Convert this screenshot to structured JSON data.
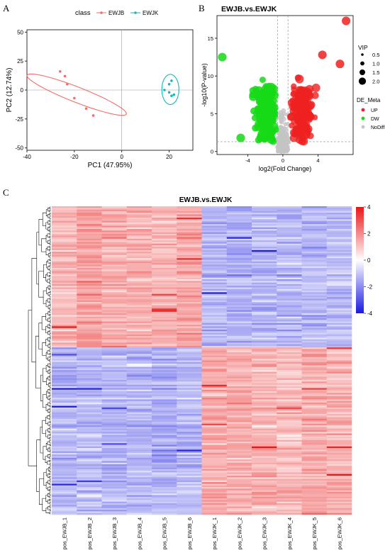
{
  "panels": {
    "a": "A",
    "b": "B",
    "c": "C"
  },
  "colors": {
    "ewjb": "#f26d6b",
    "ewjk": "#14b8b8",
    "up": "#ee2020",
    "dw": "#16d916",
    "nodiff": "#c4c4c4",
    "heat_high": "#e81717",
    "heat_mid": "#ffffff",
    "heat_low": "#1919e0"
  },
  "chart_data": [
    {
      "type": "scatter",
      "xlabel": "PC1 (47.95%)",
      "ylabel": "PC2 (12.74%)",
      "xlim": [
        -40,
        30
      ],
      "ylim": [
        -52,
        52
      ],
      "xticks": [
        -40,
        -20,
        0,
        20
      ],
      "yticks": [
        -50,
        -25,
        0,
        25,
        50
      ],
      "legend": {
        "title": "class",
        "position": "top",
        "entries": [
          "EWJB",
          "EWJK"
        ]
      },
      "series": [
        {
          "name": "EWJB",
          "x": [
            -26,
            -24,
            -23,
            -20,
            -15,
            -12
          ],
          "y": [
            16,
            12,
            5,
            -7,
            -16,
            -22
          ]
        },
        {
          "name": "EWJK",
          "x": [
            18,
            20,
            20,
            21,
            21,
            22
          ],
          "y": [
            0,
            5,
            -2,
            8,
            -5,
            -4
          ]
        }
      ]
    },
    {
      "type": "scatter",
      "title": "EWJB.vs.EWJK",
      "xlabel": "log2(Fold Change)",
      "ylabel": "-log10(P-value)",
      "xlim": [
        -7.5,
        8
      ],
      "ylim": [
        -0.4,
        18
      ],
      "xticks": [
        -4,
        0,
        4
      ],
      "yticks": [
        0,
        5,
        10,
        15
      ],
      "vlines": [
        -0.585,
        0.585
      ],
      "hline": 1.3,
      "vip_legend": {
        "title": "VIP",
        "entries": [
          "0.5",
          "1.0",
          "1.5",
          "2.0"
        ]
      },
      "class_legend": {
        "title": "DE_Meta",
        "entries": [
          "UP",
          "DW",
          "NoDiff"
        ]
      },
      "highlight_points": [
        {
          "class": "UP",
          "x": 7.2,
          "y": 17.3
        },
        {
          "class": "UP",
          "x": 6.5,
          "y": 11.6
        },
        {
          "class": "UP",
          "x": 4.5,
          "y": 12.8
        },
        {
          "class": "DW",
          "x": -6.9,
          "y": 12.5
        },
        {
          "class": "DW",
          "x": -4.8,
          "y": 1.8
        }
      ]
    },
    {
      "type": "heatmap",
      "title": "EWJB.vs.EWJK",
      "columns": [
        "pos_EWJB_1",
        "pos_EWJB_2",
        "pos_EWJB_3",
        "pos_EWJB_4",
        "pos_EWJB_5",
        "pos_EWJB_6",
        "pos_EWJK_1",
        "pos_EWJK_2",
        "pos_EWJK_3",
        "pos_EWJK_4",
        "pos_EWJK_5",
        "pos_EWJK_6"
      ],
      "colorbar": {
        "ticks": [
          "4",
          "2",
          "0",
          "-2",
          "-4"
        ],
        "range": [
          -4,
          4
        ]
      },
      "clusters": [
        {
          "name": "EWJB up",
          "share": 0.46,
          "means": [
            1.4,
            1.7,
            1.4,
            1.4,
            1.3,
            1.5,
            -1.3,
            -1.4,
            -1.2,
            -1.3,
            -1.2,
            -1.2
          ]
        },
        {
          "name": "EWJK up",
          "share": 0.54,
          "means": [
            -1.3,
            -1.2,
            -1.3,
            -1.3,
            -1.4,
            -1.2,
            1.5,
            1.4,
            1.3,
            1.2,
            1.5,
            1.4
          ]
        }
      ]
    }
  ]
}
